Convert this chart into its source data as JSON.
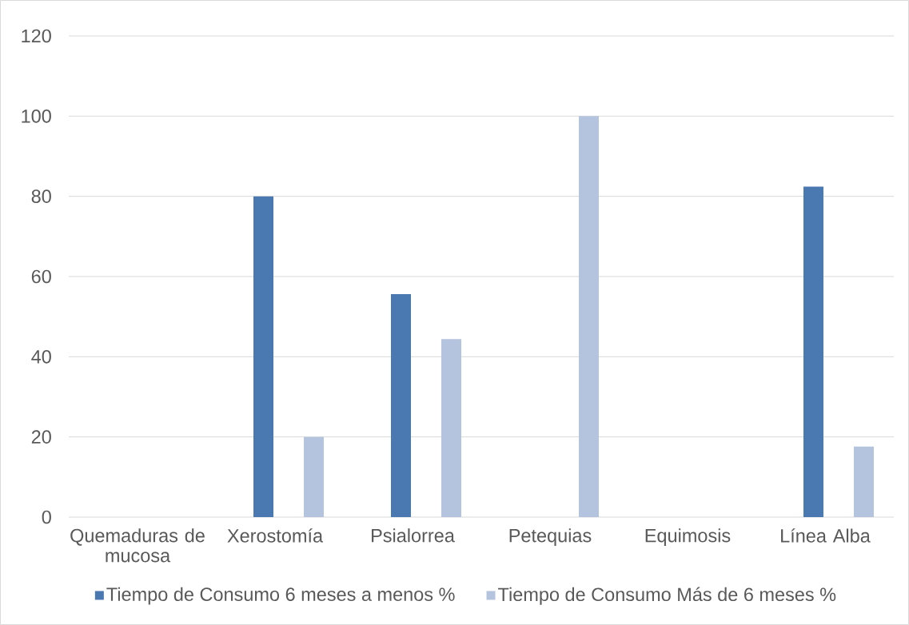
{
  "chart_data": {
    "type": "bar",
    "categories": [
      "Quemaduras de mucosa",
      "Xerostomía",
      "Psialorrea",
      "Petequias",
      "Equimosis",
      "Línea Alba"
    ],
    "series": [
      {
        "name": "Tiempo de Consumo 6 meses a menos %",
        "color": "#4a78b0",
        "values": [
          0,
          80,
          55.6,
          0,
          0,
          82.4
        ]
      },
      {
        "name": "Tiempo de Consumo Más de 6 meses %",
        "color": "#b4c3de",
        "values": [
          0,
          20,
          44.4,
          100,
          0,
          17.6
        ]
      }
    ],
    "ylim": [
      0,
      120
    ],
    "yticks": [
      0,
      20,
      40,
      60,
      80,
      100,
      120
    ],
    "grid": "y",
    "legend": "bottom"
  }
}
